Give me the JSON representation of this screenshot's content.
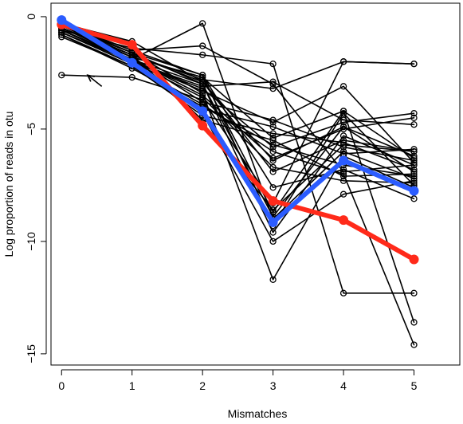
{
  "chart_data": {
    "type": "line",
    "xlabel": "Mismatches",
    "ylabel": "Log proportion of reads in otu",
    "xlim": [
      -0.15,
      5.65
    ],
    "ylim": [
      -15.5,
      0.6
    ],
    "x_ticks": [
      0,
      1,
      2,
      3,
      4,
      5
    ],
    "y_ticks": [
      0,
      -5,
      -10,
      -15
    ],
    "x_tick_labels": [
      "0",
      "1",
      "2",
      "3",
      "4",
      "5"
    ],
    "y_tick_labels": [
      "0",
      "−5",
      "−10",
      "−15"
    ],
    "grid": false,
    "legend": "none",
    "colors": {
      "black": "#000000",
      "red": "#ff2a1a",
      "blue": "#2b5cff"
    },
    "series": [
      {
        "values": [
          -0.4,
          -1.8,
          -2.7,
          -8.7,
          -4.2,
          -6.3
        ]
      },
      {
        "values": [
          -0.3,
          -1.5,
          -2.6,
          -9.3,
          -4.3,
          -7.5
        ]
      },
      {
        "values": [
          -0.5,
          -1.7,
          -2.9,
          -6.9,
          -5.5,
          -6.0
        ]
      },
      {
        "values": [
          -0.6,
          -2.0,
          -3.2,
          -5.8,
          -4.7,
          -4.3
        ]
      },
      {
        "values": [
          -0.3,
          -1.6,
          -3.0,
          -8.9,
          -4.9,
          -6.2
        ]
      },
      {
        "values": [
          -0.5,
          -1.9,
          -3.5,
          -6.3,
          -5.0,
          -4.5
        ]
      },
      {
        "values": [
          -0.4,
          -1.8,
          -3.8,
          -4.6,
          -5.8,
          -6.4
        ]
      },
      {
        "values": [
          -0.7,
          -2.1,
          -4.1,
          -4.9,
          -6.1,
          -5.9
        ]
      },
      {
        "values": [
          -0.9,
          -2.2,
          -4.4,
          -5.2,
          -5.6,
          -6.8
        ]
      },
      {
        "values": [
          -0.4,
          -1.7,
          -4.6,
          -5.5,
          -7.1,
          -7.0
        ]
      },
      {
        "values": [
          -0.6,
          -2.0,
          -3.6,
          -6.7,
          -7.3,
          -7.4
        ]
      },
      {
        "values": [
          -0.8,
          -2.3,
          -4.0,
          -5.7,
          -6.6,
          -7.1
        ]
      },
      {
        "values": [
          -0.5,
          -1.9,
          -0.3,
          -9.0,
          -6.0,
          -7.2
        ]
      },
      {
        "values": [
          -0.3,
          -1.5,
          -1.3,
          -3.0,
          -6.9,
          -6.6
        ]
      },
      {
        "values": [
          -0.6,
          -1.4,
          -1.7,
          -2.1,
          -12.3,
          -12.3
        ]
      },
      {
        "values": [
          -0.4,
          -1.7,
          -2.8,
          -3.2,
          -2.0,
          -2.1
        ]
      },
      {
        "values": [
          -0.7,
          -2.0,
          -3.3,
          -4.7,
          -3.1,
          -6.5
        ]
      },
      {
        "values": [
          -0.5,
          -1.8,
          -2.7,
          -5.4,
          -4.2,
          -13.6
        ]
      },
      {
        "values": [
          -0.8,
          -2.2,
          -3.9,
          -6.0,
          -7.0,
          -14.6
        ]
      },
      {
        "values": [
          -0.6,
          -1.9,
          -3.0,
          -9.6,
          -5.3,
          -6.6
        ]
      },
      {
        "values": [
          -0.4,
          -1.6,
          -3.4,
          -11.7,
          -6.2,
          -7.6
        ]
      },
      {
        "values": [
          -0.7,
          -2.1,
          -4.3,
          -10.0,
          -7.9,
          -7.3
        ]
      },
      {
        "values": [
          -0.5,
          -1.8,
          -4.7,
          -8.6,
          -5.7,
          -6.0
        ]
      },
      {
        "values": [
          -0.3,
          -1.1,
          -2.9,
          -6.4,
          -4.9,
          -6.9
        ]
      },
      {
        "values": [
          -0.6,
          -2.0,
          -3.1,
          -2.9,
          -4.6,
          -4.8
        ]
      },
      {
        "values": [
          -0.4,
          -1.6,
          -2.6,
          -7.6,
          -6.8,
          -8.1
        ]
      },
      {
        "values": [
          -2.6,
          -2.7,
          -3.7,
          -8.3,
          -2.0,
          -2.1
        ]
      },
      {
        "values": [
          -0.35,
          -1.25,
          -4.85,
          -8.2,
          -9.05,
          -10.8
        ],
        "color": "red",
        "bold": true
      },
      {
        "values": [
          -0.15,
          -2.05,
          -4.2,
          -9.15,
          -6.4,
          -7.75
        ],
        "color": "blue",
        "bold": true
      }
    ],
    "annotations": [
      {
        "type": "arrow",
        "from": [
          0.57,
          -3.1
        ],
        "to": [
          0.37,
          -2.6
        ]
      }
    ]
  }
}
